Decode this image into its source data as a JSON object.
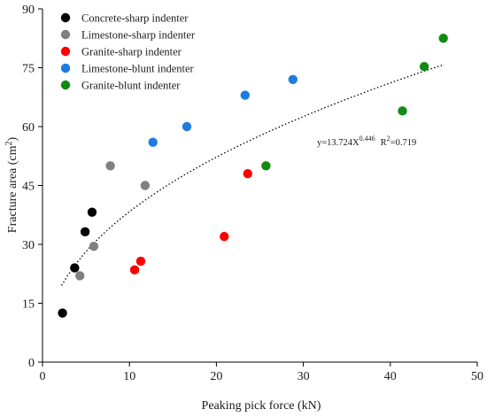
{
  "chart_data": {
    "type": "scatter",
    "xlabel": "Peaking pick force (kN)",
    "ylabel_main": "Fracture area (cm",
    "ylabel_sup": "2",
    "ylabel_end": ")",
    "xlim": [
      0,
      50
    ],
    "ylim": [
      0,
      90
    ],
    "x_ticks": [
      0,
      10,
      20,
      30,
      40,
      50
    ],
    "y_ticks": [
      0,
      15,
      30,
      45,
      60,
      75,
      90
    ],
    "grid": false,
    "legend_position": "top-left",
    "series": [
      {
        "name": "Concrete-sharp indenter",
        "color": "#000000",
        "points": [
          [
            2.3,
            12.5
          ],
          [
            3.7,
            24
          ],
          [
            4.9,
            33.2
          ],
          [
            5.7,
            38.2
          ]
        ]
      },
      {
        "name": "Limestone-sharp indenter",
        "color": "#808080",
        "points": [
          [
            4.3,
            22
          ],
          [
            5.9,
            29.5
          ],
          [
            7.8,
            50
          ],
          [
            11.8,
            45
          ]
        ]
      },
      {
        "name": "Granite-sharp indenter",
        "color": "#ff0000",
        "points": [
          [
            10.6,
            23.5
          ],
          [
            11.3,
            25.7
          ],
          [
            20.9,
            32
          ],
          [
            23.6,
            48
          ]
        ]
      },
      {
        "name": "Limestone-blunt indenter",
        "color": "#1e7be0",
        "points": [
          [
            12.7,
            56
          ],
          [
            16.6,
            60
          ],
          [
            23.3,
            68
          ],
          [
            28.8,
            72
          ]
        ]
      },
      {
        "name": "Granite-blunt indenter",
        "color": "#138a13",
        "points": [
          [
            25.7,
            50
          ],
          [
            41.4,
            64
          ],
          [
            43.9,
            75.3
          ],
          [
            46.1,
            82.5
          ]
        ]
      }
    ],
    "fit": {
      "coef": 13.724,
      "exponent": 0.446,
      "x_range": [
        2.2,
        46.2
      ],
      "style": "dotted",
      "eq_main": "y=13.724X",
      "eq_exp": "0.446",
      "eq_r": "R",
      "eq_r_sup": "2",
      "eq_r_val": "=0.719"
    }
  }
}
